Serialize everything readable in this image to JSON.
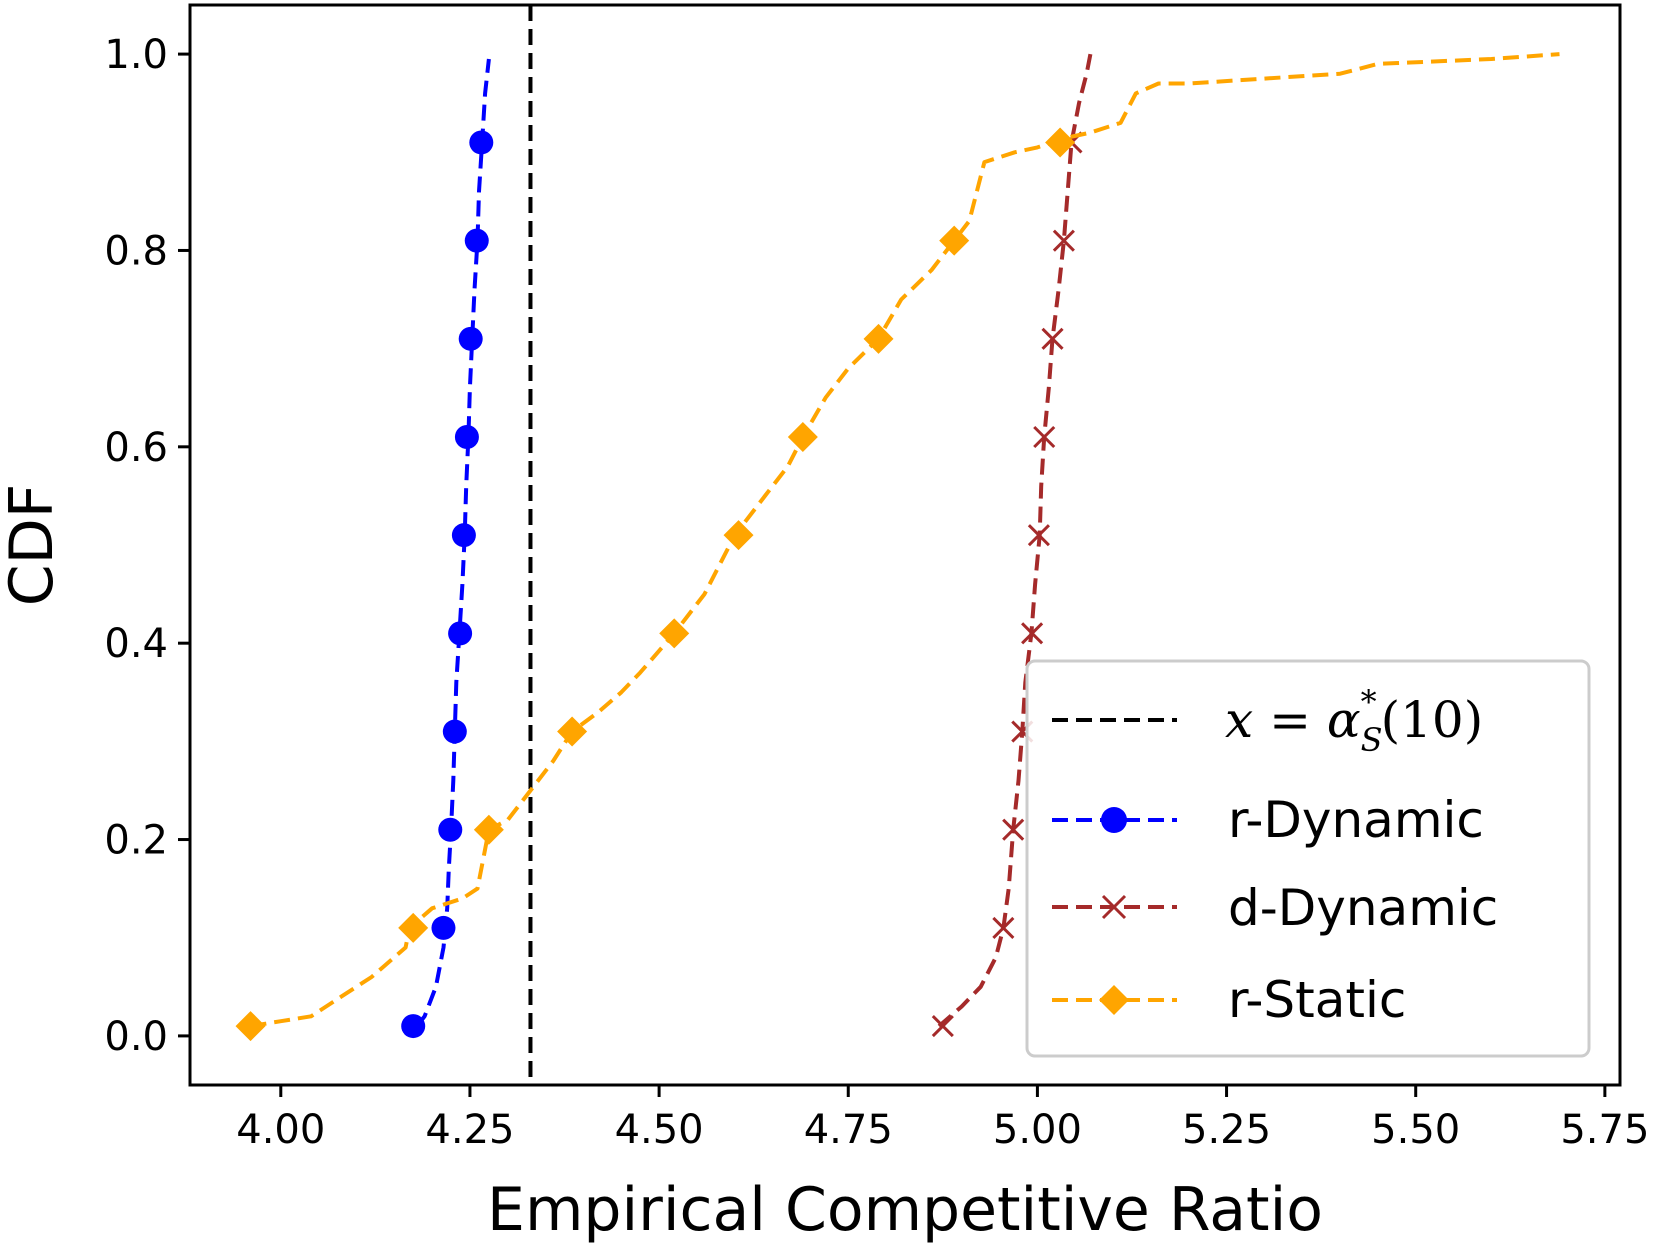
{
  "chart_data": {
    "type": "line",
    "title": "",
    "xlabel": "Empirical Competitive Ratio",
    "ylabel": "CDF",
    "xlim": [
      3.88,
      5.77
    ],
    "ylim": [
      -0.05,
      1.05
    ],
    "grid": false,
    "legend_location": "lower-right",
    "xticks": [
      4.0,
      4.25,
      4.5,
      4.75,
      5.0,
      5.25,
      5.5,
      5.75
    ],
    "xtick_labels": [
      "4.00",
      "4.25",
      "4.50",
      "4.75",
      "5.00",
      "5.25",
      "5.50",
      "5.75"
    ],
    "yticks": [
      0.0,
      0.2,
      0.4,
      0.6,
      0.8,
      1.0
    ],
    "ytick_labels": [
      "0.0",
      "0.2",
      "0.4",
      "0.6",
      "0.8",
      "1.0"
    ],
    "vline": {
      "name": "x = α*_S(10)",
      "legend_prefix": "x = α",
      "legend_sup": "*",
      "legend_sub": "S",
      "legend_suffix": "(10)",
      "x": 4.33,
      "color": "#000000"
    },
    "series": [
      {
        "name": "r-Dynamic",
        "color": "#0000ff",
        "marker": "circle",
        "line": [
          [
            4.18,
            0.01
          ],
          [
            4.19,
            0.02
          ],
          [
            4.205,
            0.05
          ],
          [
            4.215,
            0.09
          ],
          [
            4.22,
            0.13
          ],
          [
            4.222,
            0.17
          ],
          [
            4.225,
            0.21
          ],
          [
            4.228,
            0.26
          ],
          [
            4.23,
            0.31
          ],
          [
            4.232,
            0.36
          ],
          [
            4.236,
            0.41
          ],
          [
            4.24,
            0.46
          ],
          [
            4.243,
            0.51
          ],
          [
            4.245,
            0.56
          ],
          [
            4.248,
            0.61
          ],
          [
            4.25,
            0.66
          ],
          [
            4.253,
            0.71
          ],
          [
            4.256,
            0.76
          ],
          [
            4.26,
            0.81
          ],
          [
            4.262,
            0.86
          ],
          [
            4.266,
            0.91
          ],
          [
            4.27,
            0.96
          ],
          [
            4.275,
            0.995
          ]
        ],
        "markers": [
          [
            4.175,
            0.01
          ],
          [
            4.215,
            0.11
          ],
          [
            4.224,
            0.21
          ],
          [
            4.23,
            0.31
          ],
          [
            4.237,
            0.41
          ],
          [
            4.242,
            0.51
          ],
          [
            4.246,
            0.61
          ],
          [
            4.251,
            0.71
          ],
          [
            4.259,
            0.81
          ],
          [
            4.265,
            0.91
          ]
        ]
      },
      {
        "name": "d-Dynamic",
        "color": "#a52a2a",
        "marker": "x",
        "line": [
          [
            4.87,
            0.01
          ],
          [
            4.9,
            0.03
          ],
          [
            4.925,
            0.05
          ],
          [
            4.945,
            0.08
          ],
          [
            4.955,
            0.11
          ],
          [
            4.962,
            0.15
          ],
          [
            4.968,
            0.21
          ],
          [
            4.975,
            0.26
          ],
          [
            4.98,
            0.31
          ],
          [
            4.984,
            0.36
          ],
          [
            4.992,
            0.41
          ],
          [
            4.997,
            0.46
          ],
          [
            5.003,
            0.51
          ],
          [
            5.005,
            0.56
          ],
          [
            5.009,
            0.61
          ],
          [
            5.015,
            0.66
          ],
          [
            5.02,
            0.71
          ],
          [
            5.028,
            0.76
          ],
          [
            5.035,
            0.81
          ],
          [
            5.04,
            0.86
          ],
          [
            5.045,
            0.91
          ],
          [
            5.055,
            0.95
          ],
          [
            5.065,
            0.98
          ],
          [
            5.07,
            1.0
          ]
        ],
        "markers": [
          [
            4.875,
            0.01
          ],
          [
            4.955,
            0.11
          ],
          [
            4.968,
            0.21
          ],
          [
            4.98,
            0.31
          ],
          [
            4.993,
            0.41
          ],
          [
            5.002,
            0.51
          ],
          [
            5.009,
            0.61
          ],
          [
            5.02,
            0.71
          ],
          [
            5.035,
            0.81
          ],
          [
            5.045,
            0.91
          ]
        ]
      },
      {
        "name": "r-Static",
        "color": "#ffa500",
        "marker": "diamond",
        "line": [
          [
            3.96,
            0.01
          ],
          [
            4.0,
            0.015
          ],
          [
            4.04,
            0.02
          ],
          [
            4.08,
            0.04
          ],
          [
            4.12,
            0.06
          ],
          [
            4.165,
            0.09
          ],
          [
            4.17,
            0.11
          ],
          [
            4.2,
            0.13
          ],
          [
            4.24,
            0.14
          ],
          [
            4.26,
            0.15
          ],
          [
            4.275,
            0.21
          ],
          [
            4.3,
            0.22
          ],
          [
            4.33,
            0.25
          ],
          [
            4.36,
            0.28
          ],
          [
            4.385,
            0.31
          ],
          [
            4.42,
            0.33
          ],
          [
            4.45,
            0.35
          ],
          [
            4.475,
            0.37
          ],
          [
            4.52,
            0.41
          ],
          [
            4.56,
            0.45
          ],
          [
            4.6,
            0.51
          ],
          [
            4.64,
            0.55
          ],
          [
            4.67,
            0.58
          ],
          [
            4.69,
            0.61
          ],
          [
            4.72,
            0.65
          ],
          [
            4.75,
            0.68
          ],
          [
            4.79,
            0.71
          ],
          [
            4.82,
            0.75
          ],
          [
            4.86,
            0.78
          ],
          [
            4.89,
            0.81
          ],
          [
            4.91,
            0.83
          ],
          [
            4.93,
            0.89
          ],
          [
            4.97,
            0.9
          ],
          [
            5.0,
            0.905
          ],
          [
            5.04,
            0.915
          ],
          [
            5.07,
            0.92
          ],
          [
            5.11,
            0.93
          ],
          [
            5.13,
            0.96
          ],
          [
            5.16,
            0.97
          ],
          [
            5.2,
            0.97
          ],
          [
            5.3,
            0.975
          ],
          [
            5.4,
            0.98
          ],
          [
            5.45,
            0.99
          ],
          [
            5.6,
            0.995
          ],
          [
            5.69,
            1.0
          ]
        ],
        "markers": [
          [
            3.96,
            0.01
          ],
          [
            4.175,
            0.11
          ],
          [
            4.275,
            0.21
          ],
          [
            4.385,
            0.31
          ],
          [
            4.52,
            0.41
          ],
          [
            4.605,
            0.51
          ],
          [
            4.69,
            0.61
          ],
          [
            4.79,
            0.71
          ],
          [
            4.89,
            0.81
          ],
          [
            5.03,
            0.91
          ]
        ]
      }
    ]
  }
}
